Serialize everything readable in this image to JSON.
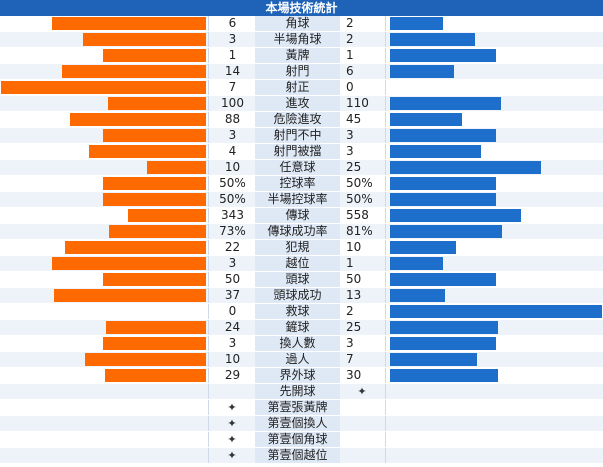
{
  "title": "本場技術統計",
  "colors": {
    "home_bar": "#ff6a00",
    "away_bar": "#1e6fcc",
    "header": "#1e63b8"
  },
  "stats": [
    {
      "label": "角球",
      "home": "6",
      "away": "2",
      "home_v": 6,
      "away_v": 2
    },
    {
      "label": "半場角球",
      "home": "3",
      "away": "2",
      "home_v": 3,
      "away_v": 2
    },
    {
      "label": "黃牌",
      "home": "1",
      "away": "1",
      "home_v": 1,
      "away_v": 1
    },
    {
      "label": "射門",
      "home": "14",
      "away": "6",
      "home_v": 14,
      "away_v": 6
    },
    {
      "label": "射正",
      "home": "7",
      "away": "0",
      "home_v": 7,
      "away_v": 0
    },
    {
      "label": "進攻",
      "home": "100",
      "away": "110",
      "home_v": 100,
      "away_v": 110
    },
    {
      "label": "危險進攻",
      "home": "88",
      "away": "45",
      "home_v": 88,
      "away_v": 45
    },
    {
      "label": "射門不中",
      "home": "3",
      "away": "3",
      "home_v": 3,
      "away_v": 3
    },
    {
      "label": "射門被擋",
      "home": "4",
      "away": "3",
      "home_v": 4,
      "away_v": 3
    },
    {
      "label": "任意球",
      "home": "10",
      "away": "25",
      "home_v": 10,
      "away_v": 25
    },
    {
      "label": "控球率",
      "home": "50%",
      "away": "50%",
      "home_v": 50,
      "away_v": 50
    },
    {
      "label": "半場控球率",
      "home": "50%",
      "away": "50%",
      "home_v": 50,
      "away_v": 50
    },
    {
      "label": "傳球",
      "home": "343",
      "away": "558",
      "home_v": 343,
      "away_v": 558
    },
    {
      "label": "傳球成功率",
      "home": "73%",
      "away": "81%",
      "home_v": 73,
      "away_v": 81
    },
    {
      "label": "犯規",
      "home": "22",
      "away": "10",
      "home_v": 22,
      "away_v": 10
    },
    {
      "label": "越位",
      "home": "3",
      "away": "1",
      "home_v": 3,
      "away_v": 1
    },
    {
      "label": "頭球",
      "home": "50",
      "away": "50",
      "home_v": 50,
      "away_v": 50
    },
    {
      "label": "頭球成功",
      "home": "37",
      "away": "13",
      "home_v": 37,
      "away_v": 13
    },
    {
      "label": "救球",
      "home": "0",
      "away": "2",
      "home_v": 0,
      "away_v": 2
    },
    {
      "label": "鏟球",
      "home": "24",
      "away": "25",
      "home_v": 24,
      "away_v": 25
    },
    {
      "label": "換人數",
      "home": "3",
      "away": "3",
      "home_v": 3,
      "away_v": 3
    },
    {
      "label": "過人",
      "home": "10",
      "away": "7",
      "home_v": 10,
      "away_v": 7
    },
    {
      "label": "界外球",
      "home": "29",
      "away": "30",
      "home_v": 29,
      "away_v": 30
    }
  ],
  "firsts": [
    {
      "label": "先開球",
      "side": "away"
    },
    {
      "label": "第壹張黃牌",
      "side": "home"
    },
    {
      "label": "第壹個換人",
      "side": "home"
    },
    {
      "label": "第壹個角球",
      "side": "home"
    },
    {
      "label": "第壹個越位",
      "side": "home"
    }
  ],
  "mark_icon": "diamond-star-icon"
}
